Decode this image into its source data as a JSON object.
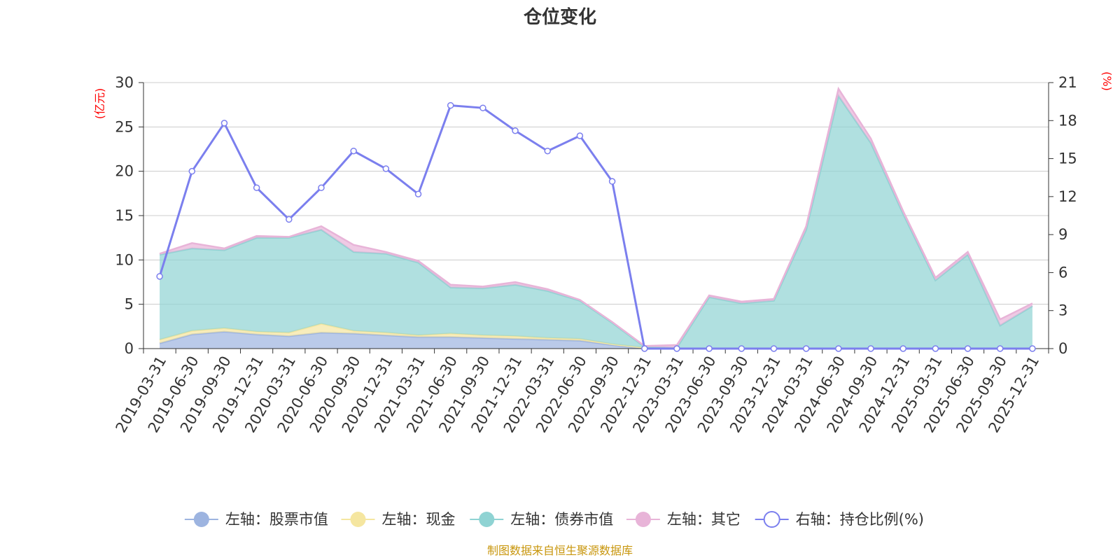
{
  "chart_data": {
    "type": "area",
    "title": "仓位变化",
    "left_axis": {
      "unit": "(亿元)",
      "ylim": [
        0,
        30
      ],
      "ticks": [
        0,
        5,
        10,
        15,
        20,
        25,
        30
      ]
    },
    "right_axis": {
      "unit": "(%)",
      "ylim": [
        0,
        21
      ],
      "ticks": [
        0,
        3,
        6,
        9,
        12,
        15,
        18,
        21
      ]
    },
    "grid": true,
    "legend_position": "bottom",
    "categories": [
      "2019-03-31",
      "2019-06-30",
      "2019-09-30",
      "2019-12-31",
      "2020-03-31",
      "2020-06-30",
      "2020-09-30",
      "2020-12-31",
      "2021-03-31",
      "2021-06-30",
      "2021-09-30",
      "2021-12-31",
      "2022-03-31",
      "2022-06-30",
      "2022-09-30",
      "2022-12-31",
      "2023-03-31",
      "2023-06-30",
      "2023-09-30",
      "2023-12-31",
      "2024-03-31",
      "2024-06-30",
      "2024-09-30",
      "2024-12-31",
      "2025-03-31",
      "2025-06-30",
      "2025-09-30",
      "2025-12-31"
    ],
    "series": [
      {
        "name": "左轴：股票市值",
        "axis": "left",
        "stacked": true,
        "color": "#9db4e0",
        "values": [
          0.6,
          1.6,
          1.9,
          1.6,
          1.4,
          1.8,
          1.7,
          1.5,
          1.3,
          1.3,
          1.2,
          1.1,
          1.0,
          0.9,
          0.4,
          0.0,
          0.0,
          0.0,
          0.0,
          0.0,
          0.0,
          0.0,
          0.0,
          0.0,
          0.0,
          0.0,
          0.0,
          0.0
        ]
      },
      {
        "name": "左轴：现金",
        "axis": "left",
        "stacked": true,
        "color": "#f5e6a0",
        "values": [
          0.4,
          0.4,
          0.4,
          0.3,
          0.4,
          1.0,
          0.3,
          0.3,
          0.2,
          0.4,
          0.3,
          0.3,
          0.2,
          0.2,
          0.1,
          0.1,
          0.0,
          0.0,
          0.0,
          0.0,
          0.0,
          0.0,
          0.0,
          0.0,
          0.0,
          0.0,
          0.0,
          0.0
        ]
      },
      {
        "name": "左轴：债券市值",
        "axis": "left",
        "stacked": true,
        "color": "#8fd3d3",
        "values": [
          9.6,
          9.3,
          8.8,
          10.6,
          10.7,
          10.6,
          8.9,
          8.9,
          8.2,
          5.2,
          5.3,
          5.8,
          5.3,
          4.3,
          2.4,
          0.1,
          0.1,
          5.8,
          5.1,
          5.4,
          13.4,
          28.5,
          23.2,
          15.2,
          7.7,
          10.6,
          2.6,
          4.8
        ]
      },
      {
        "name": "左轴：其它",
        "axis": "left",
        "stacked": true,
        "color": "#e8b4d8",
        "values": [
          0.1,
          0.6,
          0.2,
          0.2,
          0.1,
          0.4,
          0.8,
          0.2,
          0.2,
          0.3,
          0.2,
          0.3,
          0.2,
          0.1,
          0.1,
          0.1,
          0.3,
          0.2,
          0.2,
          0.2,
          0.4,
          0.8,
          0.5,
          0.3,
          0.3,
          0.3,
          0.7,
          0.3
        ]
      },
      {
        "name": "右轴：持仓比例(%)",
        "axis": "right",
        "type": "line",
        "color": "#7b7fee",
        "values": [
          5.7,
          14.0,
          17.8,
          12.7,
          10.2,
          12.7,
          15.6,
          14.2,
          12.2,
          19.2,
          19.0,
          17.2,
          15.6,
          16.8,
          13.2,
          0.0,
          0.0,
          0.0,
          0.0,
          0.0,
          0.0,
          0.0,
          0.0,
          0.0,
          0.0,
          0.0,
          0.0,
          0.0
        ]
      }
    ]
  },
  "footer": {
    "source": "制图数据来自恒生聚源数据库"
  }
}
